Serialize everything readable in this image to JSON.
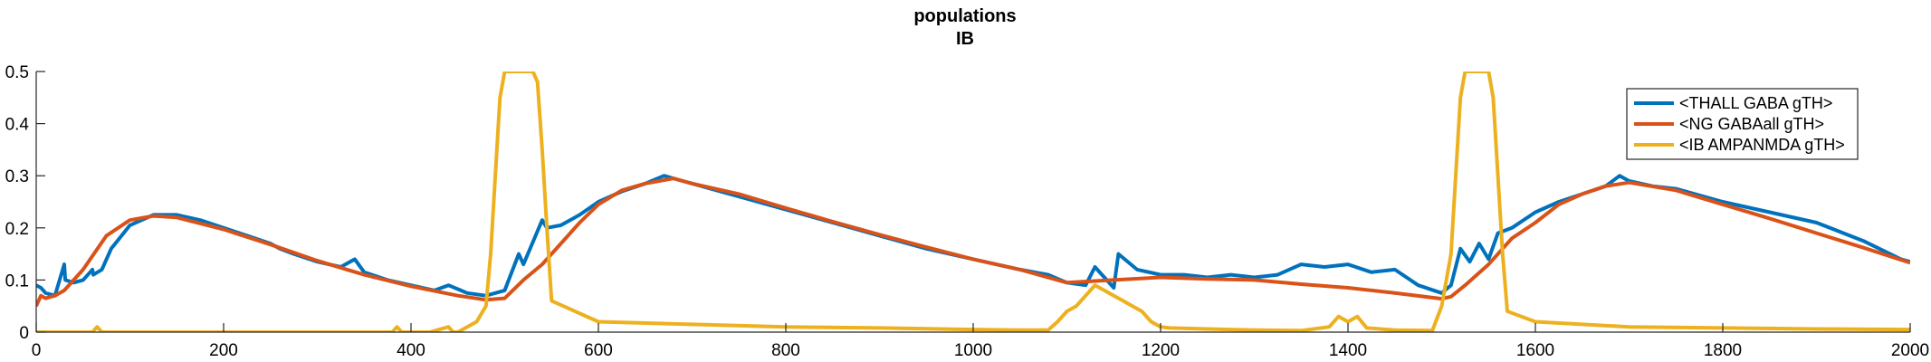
{
  "chart_data": {
    "type": "line",
    "title": "populations",
    "subtitle": "IB",
    "xlabel": "",
    "ylabel": "",
    "xlim": [
      0,
      2000
    ],
    "ylim": [
      0,
      0.5
    ],
    "xticks": [
      0,
      200,
      400,
      600,
      800,
      1000,
      1200,
      1400,
      1600,
      1800,
      2000
    ],
    "xtick_labels": [
      "0",
      "200",
      "400",
      "600",
      "800",
      "1000",
      "1200",
      "1400",
      "1600",
      "1800",
      "2000"
    ],
    "yticks": [
      0,
      0.1,
      0.2,
      0.3,
      0.4,
      0.5
    ],
    "ytick_labels": [
      "0",
      "0.1",
      "0.2",
      "0.3",
      "0.4",
      "0.5"
    ],
    "grid": false,
    "legend_position": "top-right",
    "series": [
      {
        "name": "<THALL GABA gTH>",
        "color": "#0072BD",
        "x": [
          0,
          5,
          10,
          20,
          30,
          31,
          40,
          50,
          60,
          61,
          70,
          80,
          100,
          125,
          150,
          175,
          200,
          225,
          250,
          260,
          275,
          300,
          325,
          340,
          350,
          375,
          400,
          425,
          440,
          460,
          480,
          500,
          515,
          520,
          540,
          545,
          560,
          580,
          600,
          625,
          650,
          670,
          690,
          700,
          730,
          750,
          800,
          850,
          900,
          950,
          1000,
          1050,
          1080,
          1100,
          1120,
          1130,
          1150,
          1155,
          1175,
          1200,
          1225,
          1250,
          1275,
          1300,
          1325,
          1350,
          1375,
          1400,
          1425,
          1450,
          1475,
          1500,
          1510,
          1520,
          1530,
          1540,
          1550,
          1560,
          1575,
          1600,
          1625,
          1650,
          1675,
          1690,
          1700,
          1725,
          1750,
          1800,
          1850,
          1900,
          1950,
          1990,
          2000
        ],
        "y": [
          0.09,
          0.085,
          0.075,
          0.07,
          0.13,
          0.1,
          0.095,
          0.1,
          0.12,
          0.11,
          0.12,
          0.16,
          0.205,
          0.225,
          0.225,
          0.215,
          0.2,
          0.185,
          0.17,
          0.16,
          0.15,
          0.135,
          0.125,
          0.14,
          0.115,
          0.1,
          0.09,
          0.08,
          0.09,
          0.075,
          0.07,
          0.08,
          0.15,
          0.13,
          0.215,
          0.2,
          0.205,
          0.225,
          0.25,
          0.27,
          0.285,
          0.3,
          0.29,
          0.285,
          0.27,
          0.26,
          0.235,
          0.21,
          0.185,
          0.16,
          0.14,
          0.12,
          0.11,
          0.095,
          0.09,
          0.125,
          0.085,
          0.15,
          0.12,
          0.11,
          0.11,
          0.105,
          0.11,
          0.105,
          0.11,
          0.13,
          0.125,
          0.13,
          0.115,
          0.12,
          0.09,
          0.075,
          0.09,
          0.16,
          0.135,
          0.17,
          0.14,
          0.19,
          0.2,
          0.23,
          0.25,
          0.265,
          0.28,
          0.3,
          0.29,
          0.28,
          0.275,
          0.25,
          0.23,
          0.21,
          0.175,
          0.14,
          0.135
        ]
      },
      {
        "name": "<NG GABAall gTH>",
        "color": "#D95319",
        "x": [
          0,
          5,
          10,
          20,
          30,
          50,
          75,
          100,
          125,
          150,
          200,
          250,
          300,
          350,
          400,
          450,
          480,
          500,
          520,
          540,
          560,
          580,
          600,
          625,
          650,
          680,
          700,
          750,
          800,
          850,
          900,
          950,
          1000,
          1050,
          1100,
          1150,
          1200,
          1250,
          1300,
          1350,
          1400,
          1450,
          1500,
          1510,
          1525,
          1550,
          1575,
          1600,
          1625,
          1650,
          1675,
          1700,
          1750,
          1800,
          1850,
          1900,
          1950,
          2000
        ],
        "y": [
          0.05,
          0.07,
          0.065,
          0.07,
          0.08,
          0.12,
          0.185,
          0.215,
          0.223,
          0.22,
          0.197,
          0.168,
          0.137,
          0.11,
          0.088,
          0.07,
          0.062,
          0.065,
          0.1,
          0.13,
          0.17,
          0.21,
          0.245,
          0.272,
          0.285,
          0.295,
          0.285,
          0.265,
          0.238,
          0.212,
          0.187,
          0.163,
          0.14,
          0.12,
          0.095,
          0.1,
          0.105,
          0.102,
          0.1,
          0.092,
          0.085,
          0.075,
          0.064,
          0.068,
          0.09,
          0.13,
          0.18,
          0.21,
          0.245,
          0.265,
          0.28,
          0.287,
          0.272,
          0.245,
          0.218,
          0.19,
          0.162,
          0.133
        ]
      },
      {
        "name": "<IB AMPANMDA gTH>",
        "color": "#EDB120",
        "x": [
          0,
          60,
          65,
          70,
          100,
          200,
          300,
          380,
          385,
          390,
          420,
          440,
          445,
          450,
          470,
          480,
          485,
          490,
          495,
          500,
          505,
          510,
          515,
          520,
          525,
          530,
          535,
          540,
          545,
          550,
          600,
          700,
          800,
          900,
          1000,
          1050,
          1080,
          1090,
          1100,
          1110,
          1120,
          1130,
          1140,
          1150,
          1160,
          1170,
          1180,
          1190,
          1200,
          1210,
          1250,
          1300,
          1350,
          1380,
          1390,
          1400,
          1410,
          1420,
          1450,
          1490,
          1500,
          1510,
          1515,
          1520,
          1525,
          1530,
          1535,
          1540,
          1545,
          1550,
          1555,
          1560,
          1565,
          1570,
          1600,
          1700,
          1800,
          1900,
          2000
        ],
        "y": [
          0.0,
          0.0,
          0.01,
          0.0,
          0.0,
          0.0,
          0.0,
          0.0,
          0.01,
          0.0,
          0.0,
          0.01,
          0.0,
          0.0,
          0.02,
          0.05,
          0.15,
          0.3,
          0.45,
          0.5,
          0.5,
          0.5,
          0.5,
          0.5,
          0.5,
          0.5,
          0.48,
          0.35,
          0.2,
          0.06,
          0.02,
          0.015,
          0.01,
          0.008,
          0.005,
          0.004,
          0.004,
          0.02,
          0.04,
          0.05,
          0.07,
          0.09,
          0.08,
          0.07,
          0.06,
          0.05,
          0.04,
          0.02,
          0.01,
          0.008,
          0.006,
          0.004,
          0.003,
          0.01,
          0.03,
          0.02,
          0.03,
          0.008,
          0.004,
          0.003,
          0.05,
          0.15,
          0.3,
          0.45,
          0.5,
          0.5,
          0.5,
          0.5,
          0.5,
          0.5,
          0.45,
          0.3,
          0.15,
          0.04,
          0.02,
          0.01,
          0.008,
          0.006,
          0.005
        ]
      }
    ]
  }
}
